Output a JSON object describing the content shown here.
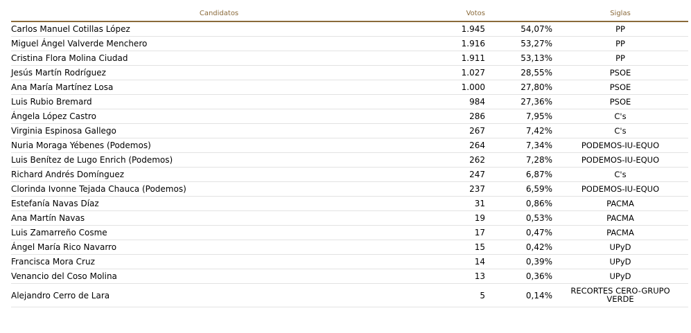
{
  "table": {
    "headers": {
      "candidates": "Candidatos",
      "votes": "Votos",
      "party": "Siglas"
    },
    "rows": [
      {
        "name": "Carlos Manuel Cotillas López",
        "votes": "1.945",
        "pct": "54,07%",
        "party": "PP"
      },
      {
        "name": "Miguel Ángel Valverde Menchero",
        "votes": "1.916",
        "pct": "53,27%",
        "party": "PP"
      },
      {
        "name": "Cristina Flora Molina Ciudad",
        "votes": "1.911",
        "pct": "53,13%",
        "party": "PP"
      },
      {
        "name": "Jesús Martín Rodríguez",
        "votes": "1.027",
        "pct": "28,55%",
        "party": "PSOE"
      },
      {
        "name": "Ana María Martínez Losa",
        "votes": "1.000",
        "pct": "27,80%",
        "party": "PSOE"
      },
      {
        "name": "Luis Rubio Bremard",
        "votes": "984",
        "pct": "27,36%",
        "party": "PSOE"
      },
      {
        "name": "Ángela López Castro",
        "votes": "286",
        "pct": "7,95%",
        "party": "C's"
      },
      {
        "name": "Virginia Espinosa Gallego",
        "votes": "267",
        "pct": "7,42%",
        "party": "C's"
      },
      {
        "name": "Nuria Moraga Yébenes (Podemos)",
        "votes": "264",
        "pct": "7,34%",
        "party": "PODEMOS-IU-EQUO"
      },
      {
        "name": "Luis Benítez de Lugo Enrich (Podemos)",
        "votes": "262",
        "pct": "7,28%",
        "party": "PODEMOS-IU-EQUO"
      },
      {
        "name": "Richard Andrés Domínguez",
        "votes": "247",
        "pct": "6,87%",
        "party": "C's"
      },
      {
        "name": "Clorinda Ivonne Tejada Chauca (Podemos)",
        "votes": "237",
        "pct": "6,59%",
        "party": "PODEMOS-IU-EQUO"
      },
      {
        "name": "Estefanía Navas Díaz",
        "votes": "31",
        "pct": "0,86%",
        "party": "PACMA"
      },
      {
        "name": "Ana Martín Navas",
        "votes": "19",
        "pct": "0,53%",
        "party": "PACMA"
      },
      {
        "name": "Luis Zamarreño Cosme",
        "votes": "17",
        "pct": "0,47%",
        "party": "PACMA"
      },
      {
        "name": "Ángel María Rico Navarro",
        "votes": "15",
        "pct": "0,42%",
        "party": "UPyD"
      },
      {
        "name": "Francisca Mora Cruz",
        "votes": "14",
        "pct": "0,39%",
        "party": "UPyD"
      },
      {
        "name": "Venancio del Coso Molina",
        "votes": "13",
        "pct": "0,36%",
        "party": "UPyD"
      },
      {
        "name": "Alejandro Cerro de Lara",
        "votes": "5",
        "pct": "0,14%",
        "party": "RECORTES CERO-GRUPO VERDE"
      }
    ]
  },
  "colors": {
    "header_text": "#8a6a3a",
    "header_rule": "#8a6a3a",
    "row_rule": "#e2e2e2"
  }
}
